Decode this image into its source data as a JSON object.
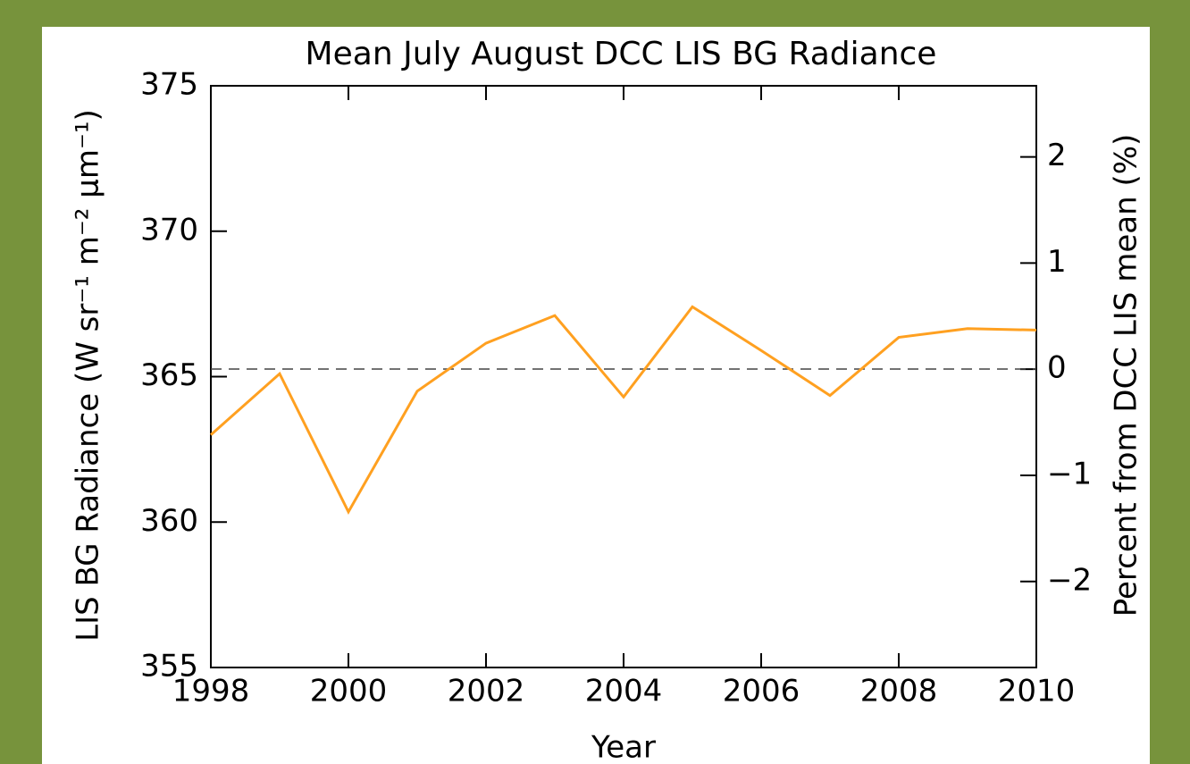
{
  "chart_data": {
    "type": "line",
    "title": "Mean July August DCC LIS BG Radiance",
    "x_label": "Year",
    "y_label": "LIS BG Radiance (W sr⁻¹ m⁻² μm⁻¹)",
    "y2_label": "Percent from DCC LIS mean (%)",
    "x": [
      1998,
      1999,
      2000,
      2001,
      2002,
      2003,
      2004,
      2005,
      2006,
      2007,
      2008,
      2009,
      2010
    ],
    "series": [
      {
        "name": "LIS BG Radiance",
        "color": "#ffa020",
        "values": [
          363.0,
          365.1,
          360.35,
          364.5,
          366.15,
          367.1,
          364.3,
          367.4,
          365.9,
          364.35,
          366.35,
          366.65,
          366.6
        ]
      }
    ],
    "reference_line": 365.26,
    "xlim": [
      1998,
      2010
    ],
    "xticks": [
      1998,
      2000,
      2002,
      2004,
      2006,
      2008,
      2010
    ],
    "ylim": [
      355,
      375
    ],
    "yticks": [
      355,
      360,
      365,
      370,
      375
    ],
    "y2lim": [
      -2.81,
      2.67
    ],
    "y2ticks": [
      {
        "value": -2,
        "label": "−2"
      },
      {
        "value": -1,
        "label": "−1"
      },
      0,
      1,
      2
    ]
  }
}
